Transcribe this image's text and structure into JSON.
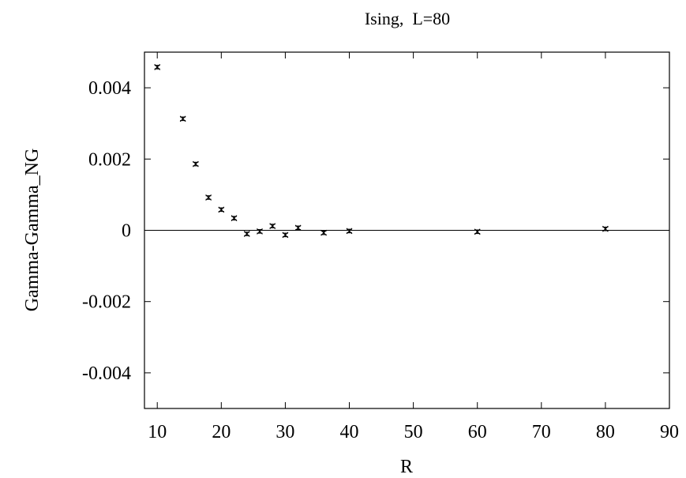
{
  "chart_data": {
    "type": "scatter",
    "title": "Ising,  L=80",
    "xlabel": "R",
    "ylabel": "Gamma-Gamma_NG",
    "xlim": [
      8,
      90
    ],
    "ylim": [
      -0.005,
      0.005
    ],
    "x_ticks": [
      10,
      20,
      30,
      40,
      50,
      60,
      70,
      80,
      90
    ],
    "y_ticks": [
      -0.004,
      -0.002,
      0,
      0.002,
      0.004
    ],
    "x_tick_labels": [
      "10",
      "20",
      "30",
      "40",
      "50",
      "60",
      "70",
      "80",
      "90"
    ],
    "y_tick_labels": [
      "-0.004",
      "-0.002",
      "0",
      "0.002",
      "0.004"
    ],
    "zero_line": true,
    "grid": false,
    "marker": "error-bar-cross",
    "series": [
      {
        "x": [
          10,
          14,
          16,
          18,
          20,
          22,
          24,
          26,
          28,
          30,
          32,
          36,
          40,
          60,
          80
        ],
        "y": [
          0.00458,
          0.00313,
          0.00186,
          0.00092,
          0.00058,
          0.00034,
          -0.0001,
          -3e-05,
          0.00012,
          -0.00013,
          7e-05,
          -7e-05,
          -2e-05,
          -4e-05,
          4e-05
        ],
        "yerr": [
          5e-05,
          5e-05,
          5e-05,
          5e-05,
          5e-05,
          5e-05,
          5e-05,
          5e-05,
          5e-05,
          5e-05,
          5e-05,
          5e-05,
          5e-05,
          5e-05,
          5e-05
        ]
      }
    ]
  }
}
